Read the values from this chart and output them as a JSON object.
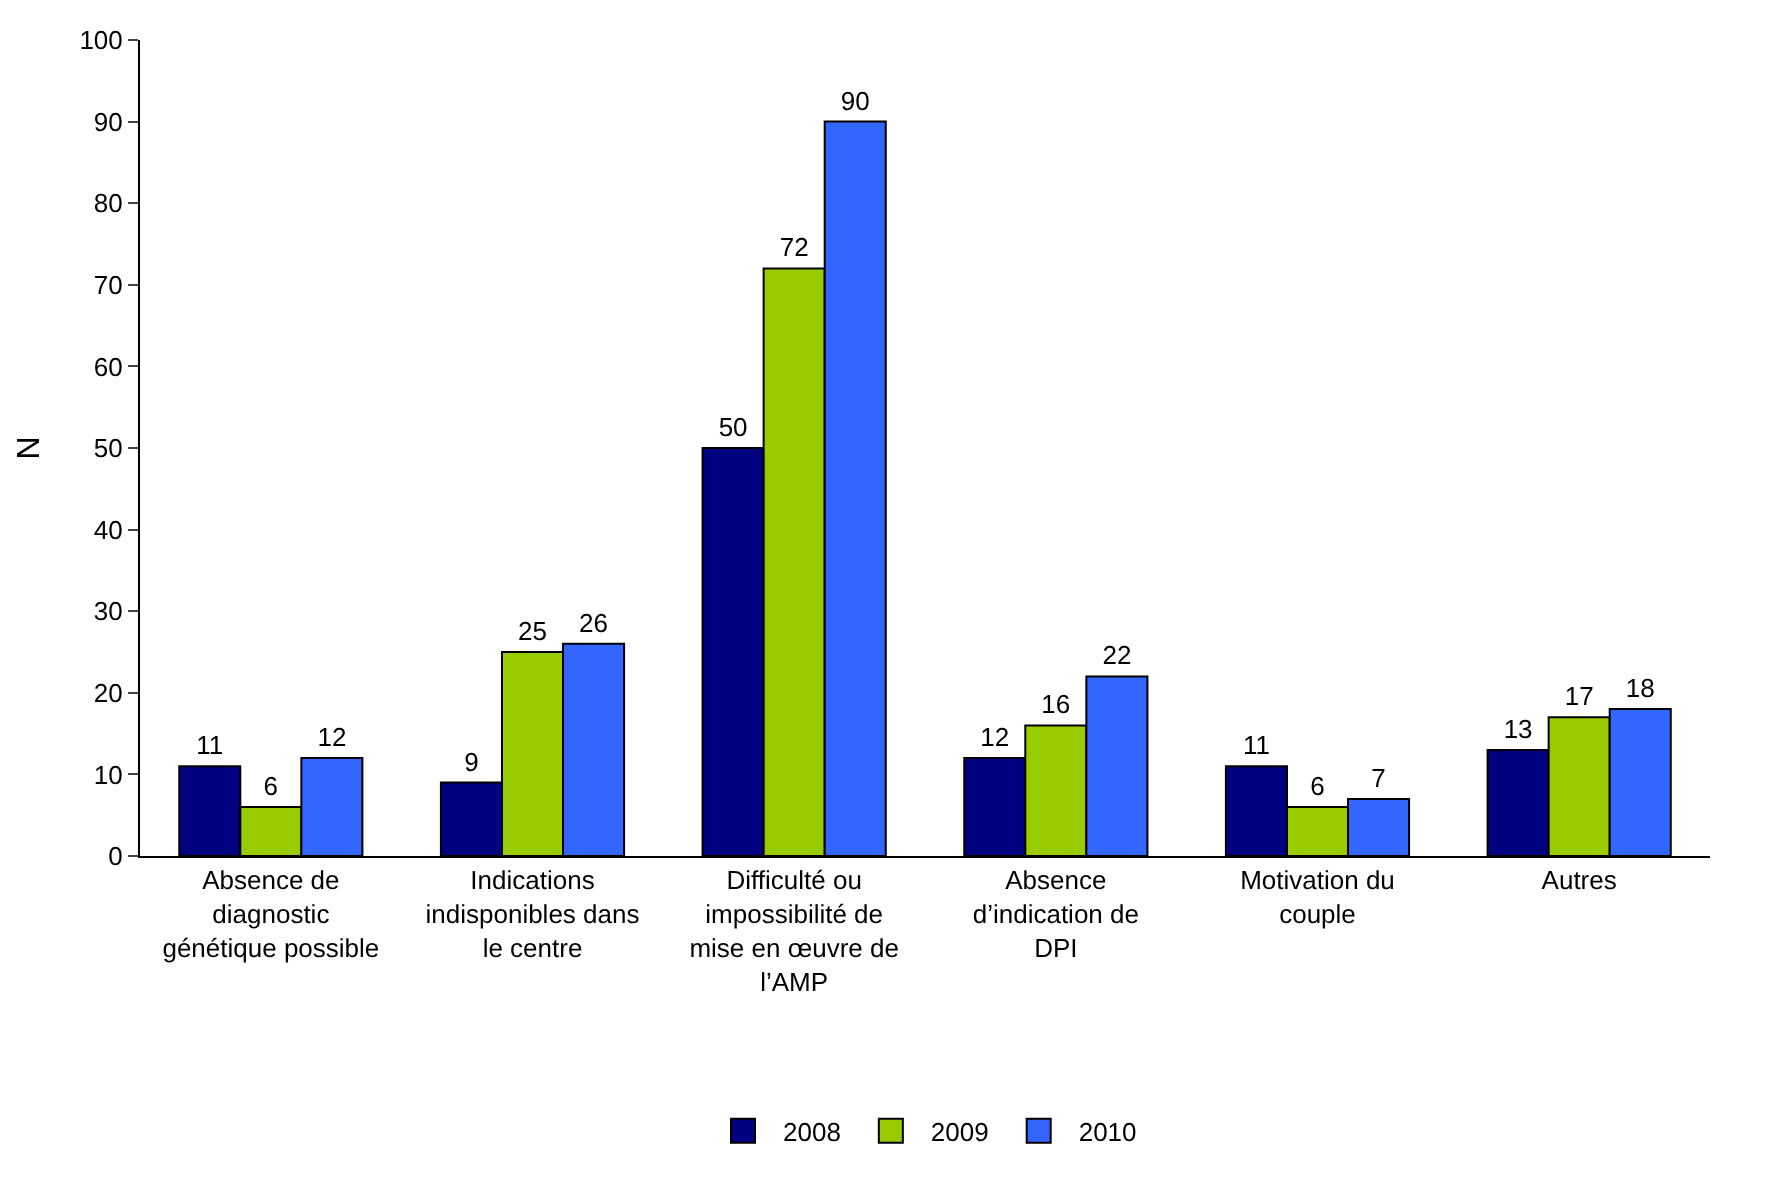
{
  "chart_data": {
    "type": "bar",
    "ylabel": "N",
    "categories": [
      "Absence de diagnostic génétique possible",
      "Indications indisponibles dans le centre",
      "Difficulté ou impossibilité de mise en œuvre de l’AMP",
      "Absence d’indication de DPI",
      "Motivation du couple",
      "Autres"
    ],
    "series": [
      {
        "name": "2008",
        "color": "#000080",
        "values": [
          11,
          9,
          50,
          12,
          11,
          13
        ]
      },
      {
        "name": "2009",
        "color": "#99cc00",
        "values": [
          6,
          25,
          72,
          16,
          6,
          17
        ]
      },
      {
        "name": "2010",
        "color": "#3366ff",
        "values": [
          12,
          26,
          90,
          22,
          7,
          18
        ]
      }
    ],
    "ylim": [
      0,
      100
    ],
    "yticks": [
      0,
      10,
      20,
      30,
      40,
      50,
      60,
      70,
      80,
      90,
      100
    ],
    "data_labels": true,
    "grid": false,
    "legend": "bottom"
  }
}
